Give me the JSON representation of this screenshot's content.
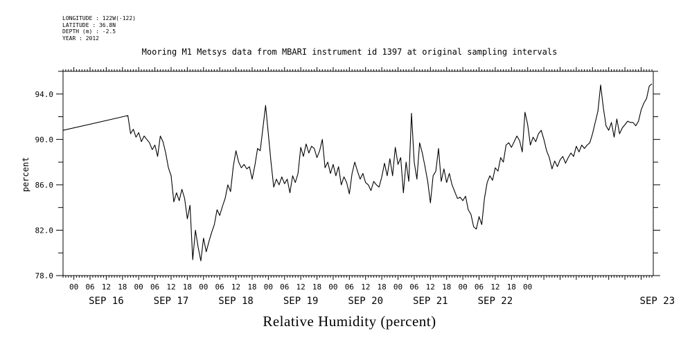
{
  "meta": {
    "longitude": "LONGITUDE : 122W(-122)",
    "latitude": "LATITUDE : 36.8N",
    "depth": "DEPTH (m) : -2.5",
    "year": "YEAR : 2012"
  },
  "chart_data": {
    "type": "line",
    "title": "Mooring M1 Metsys data from MBARI instrument id 1397 at original sampling intervals",
    "caption": "Relative Humidity (percent)",
    "ylabel": "percent",
    "xlabel": "",
    "ylim": [
      78,
      96
    ],
    "xlim_hours_note": "x in hours since SEP 15 20:00",
    "y_ticks": [
      "78.0",
      "82.0",
      "86.0",
      "90.0",
      "94.0"
    ],
    "hour_tick_labels": [
      "00",
      "06",
      "12",
      "18",
      "00",
      "06",
      "12",
      "18",
      "00",
      "06",
      "12",
      "18",
      "00",
      "06",
      "12",
      "18",
      "00",
      "06",
      "12",
      "18",
      "00",
      "06",
      "12",
      "18",
      "00",
      "06",
      "12",
      "18",
      "00"
    ],
    "day_labels": [
      "SEP 16",
      "SEP 17",
      "SEP 18",
      "SEP 19",
      "SEP 20",
      "SEP 21",
      "SEP 22",
      "SEP 23"
    ],
    "series": [
      {
        "values": [
          [
            0,
            90.8
          ],
          [
            24,
            92.1
          ],
          [
            25,
            90.5
          ],
          [
            26,
            90.9
          ],
          [
            27,
            90.2
          ],
          [
            28,
            90.6
          ],
          [
            29,
            89.8
          ],
          [
            30,
            90.3
          ],
          [
            31,
            90.0
          ],
          [
            32,
            89.7
          ],
          [
            33,
            89.1
          ],
          [
            34,
            89.5
          ],
          [
            35,
            88.5
          ],
          [
            36,
            90.3
          ],
          [
            37,
            89.8
          ],
          [
            38,
            88.8
          ],
          [
            39,
            87.5
          ],
          [
            40,
            86.8
          ],
          [
            41,
            84.5
          ],
          [
            42,
            85.3
          ],
          [
            43,
            84.6
          ],
          [
            44,
            85.6
          ],
          [
            45,
            84.8
          ],
          [
            46,
            83.0
          ],
          [
            47,
            84.2
          ],
          [
            48,
            79.4
          ],
          [
            49,
            82.0
          ],
          [
            50,
            80.5
          ],
          [
            51,
            79.3
          ],
          [
            52,
            81.3
          ],
          [
            53,
            80.1
          ],
          [
            54,
            81.0
          ],
          [
            55,
            81.8
          ],
          [
            56,
            82.5
          ],
          [
            57,
            83.8
          ],
          [
            58,
            83.3
          ],
          [
            59,
            84.1
          ],
          [
            60,
            84.8
          ],
          [
            61,
            86.0
          ],
          [
            62,
            85.4
          ],
          [
            63,
            87.6
          ],
          [
            64,
            89.0
          ],
          [
            65,
            88.0
          ],
          [
            66,
            87.5
          ],
          [
            67,
            87.8
          ],
          [
            68,
            87.4
          ],
          [
            69,
            87.6
          ],
          [
            70,
            86.5
          ],
          [
            71,
            87.7
          ],
          [
            72,
            89.2
          ],
          [
            73,
            89.0
          ],
          [
            74,
            91.0
          ],
          [
            75,
            93.0
          ],
          [
            76,
            90.5
          ],
          [
            77,
            88.0
          ],
          [
            78,
            85.8
          ],
          [
            79,
            86.5
          ],
          [
            80,
            86.0
          ],
          [
            81,
            86.7
          ],
          [
            82,
            86.1
          ],
          [
            83,
            86.5
          ],
          [
            84,
            85.3
          ],
          [
            85,
            86.8
          ],
          [
            86,
            86.2
          ],
          [
            87,
            87.0
          ],
          [
            88,
            89.3
          ],
          [
            89,
            88.5
          ],
          [
            90,
            89.6
          ],
          [
            91,
            88.8
          ],
          [
            92,
            89.4
          ],
          [
            93,
            89.2
          ],
          [
            94,
            88.4
          ],
          [
            95,
            89.0
          ],
          [
            96,
            90.0
          ],
          [
            97,
            87.5
          ],
          [
            98,
            88.0
          ],
          [
            99,
            87.0
          ],
          [
            100,
            87.8
          ],
          [
            101,
            86.8
          ],
          [
            102,
            87.6
          ],
          [
            103,
            86.0
          ],
          [
            104,
            86.7
          ],
          [
            105,
            86.2
          ],
          [
            106,
            85.2
          ],
          [
            107,
            87.0
          ],
          [
            108,
            88.0
          ],
          [
            109,
            87.2
          ],
          [
            110,
            86.5
          ],
          [
            111,
            87.0
          ],
          [
            112,
            86.2
          ],
          [
            113,
            86.0
          ],
          [
            114,
            85.5
          ],
          [
            115,
            86.3
          ],
          [
            116,
            86.0
          ],
          [
            117,
            85.8
          ],
          [
            118,
            86.7
          ],
          [
            119,
            87.9
          ],
          [
            120,
            86.8
          ],
          [
            121,
            88.3
          ],
          [
            122,
            86.8
          ],
          [
            123,
            89.3
          ],
          [
            124,
            87.8
          ],
          [
            125,
            88.4
          ],
          [
            126,
            85.3
          ],
          [
            127,
            88.0
          ],
          [
            128,
            86.3
          ],
          [
            129,
            92.3
          ],
          [
            130,
            88.0
          ],
          [
            131,
            86.5
          ],
          [
            132,
            89.7
          ],
          [
            133,
            88.8
          ],
          [
            134,
            87.6
          ],
          [
            135,
            86.3
          ],
          [
            136,
            84.4
          ],
          [
            137,
            86.8
          ],
          [
            138,
            87.2
          ],
          [
            139,
            89.2
          ],
          [
            140,
            86.3
          ],
          [
            141,
            87.4
          ],
          [
            142,
            86.2
          ],
          [
            143,
            87.0
          ],
          [
            144,
            86.0
          ],
          [
            145,
            85.4
          ],
          [
            146,
            84.8
          ],
          [
            147,
            84.9
          ],
          [
            148,
            84.6
          ],
          [
            149,
            85.0
          ],
          [
            150,
            83.8
          ],
          [
            151,
            83.4
          ],
          [
            152,
            82.3
          ],
          [
            153,
            82.1
          ],
          [
            154,
            83.2
          ],
          [
            155,
            82.5
          ],
          [
            156,
            84.8
          ],
          [
            157,
            86.2
          ],
          [
            158,
            86.8
          ],
          [
            159,
            86.4
          ],
          [
            160,
            87.5
          ],
          [
            161,
            87.2
          ],
          [
            162,
            88.4
          ],
          [
            163,
            88.0
          ],
          [
            164,
            89.5
          ],
          [
            165,
            89.7
          ],
          [
            166,
            89.3
          ],
          [
            167,
            89.8
          ],
          [
            168,
            90.3
          ],
          [
            169,
            89.9
          ],
          [
            170,
            88.9
          ],
          [
            171,
            92.4
          ],
          [
            172,
            91.3
          ],
          [
            173,
            89.5
          ],
          [
            174,
            90.2
          ],
          [
            175,
            89.8
          ],
          [
            176,
            90.5
          ],
          [
            177,
            90.8
          ],
          [
            178,
            90.0
          ],
          [
            179,
            89.0
          ],
          [
            180,
            88.4
          ],
          [
            181,
            87.4
          ],
          [
            182,
            88.1
          ],
          [
            183,
            87.6
          ],
          [
            184,
            88.2
          ],
          [
            185,
            88.5
          ],
          [
            186,
            87.9
          ],
          [
            187,
            88.4
          ],
          [
            188,
            88.8
          ],
          [
            189,
            88.5
          ],
          [
            190,
            89.4
          ],
          [
            191,
            88.9
          ],
          [
            192,
            89.5
          ],
          [
            193,
            89.2
          ],
          [
            194,
            89.5
          ],
          [
            195,
            89.7
          ],
          [
            196,
            90.5
          ],
          [
            197,
            91.5
          ],
          [
            198,
            92.5
          ],
          [
            199,
            94.8
          ],
          [
            200,
            92.8
          ],
          [
            201,
            91.2
          ],
          [
            202,
            90.8
          ],
          [
            203,
            91.5
          ],
          [
            204,
            90.2
          ],
          [
            205,
            91.8
          ],
          [
            206,
            90.5
          ],
          [
            207,
            91.0
          ],
          [
            208,
            91.3
          ],
          [
            209,
            91.6
          ],
          [
            210,
            91.5
          ],
          [
            211,
            91.5
          ],
          [
            212,
            91.2
          ],
          [
            213,
            91.6
          ],
          [
            214,
            92.6
          ],
          [
            215,
            93.2
          ],
          [
            216,
            93.6
          ],
          [
            217,
            94.7
          ],
          [
            218,
            94.9
          ]
        ]
      }
    ],
    "grid": false,
    "legend": "none"
  }
}
